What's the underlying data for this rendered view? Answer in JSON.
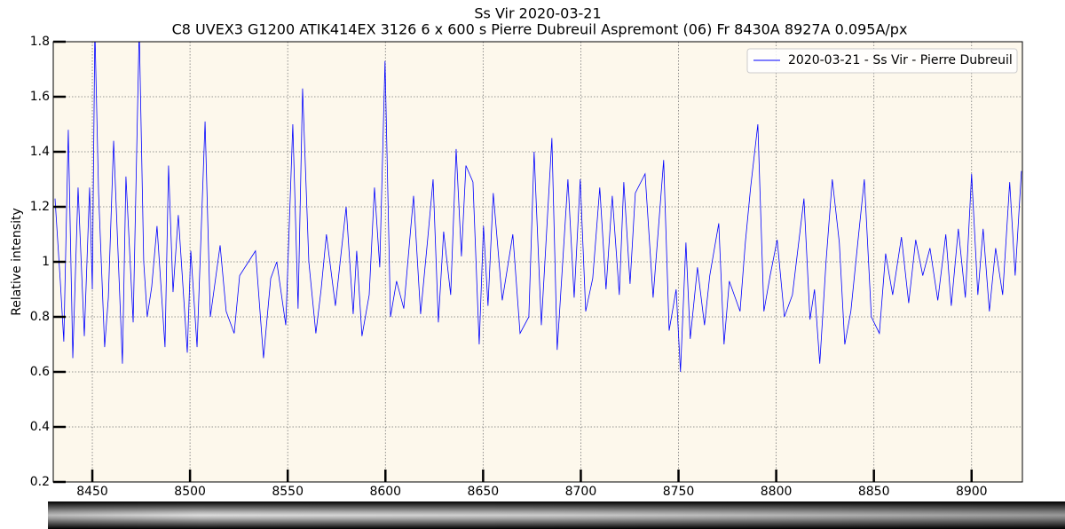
{
  "chart_data": {
    "type": "line",
    "title": "Ss Vir 2020-03-21",
    "subtitle": "C8 UVEX3 G1200 ATIK414EX 3126 6 x 600 s Pierre Dubreuil Aspremont (06) Fr 8430A 8927A 0.095A/px",
    "y_label": "Relative intensity",
    "xlim": [
      8430,
      8926
    ],
    "ylim": [
      0.2,
      1.8
    ],
    "xticks": [
      8450,
      8500,
      8550,
      8600,
      8650,
      8700,
      8750,
      8800,
      8850,
      8900
    ],
    "yticks": [
      0.2,
      0.4,
      0.6,
      0.8,
      1.0,
      1.2,
      1.4,
      1.6,
      1.8
    ],
    "grid": true,
    "legend": "upper right",
    "x": [
      8430.9,
      8433.6,
      8435.4,
      8437.7,
      8440.0,
      8442.7,
      8445.9,
      8448.6,
      8450.0,
      8451.3,
      8453.2,
      8456.3,
      8458.2,
      8460.9,
      8465.4,
      8467.2,
      8470.9,
      8474.0,
      8476.3,
      8478.1,
      8480.4,
      8483.1,
      8487.2,
      8489.0,
      8491.3,
      8494.0,
      8498.6,
      8500.4,
      8503.6,
      8507.7,
      8510.4,
      8515.4,
      8518.5,
      8522.6,
      8525.4,
      8529.9,
      8533.5,
      8537.6,
      8541.3,
      8544.4,
      8549.0,
      8552.6,
      8555.3,
      8557.6,
      8560.8,
      8564.4,
      8567.1,
      8569.8,
      8574.4,
      8579.9,
      8583.5,
      8585.3,
      8588.0,
      8591.7,
      8594.4,
      8597.1,
      8599.8,
      8602.6,
      8605.7,
      8609.4,
      8614.4,
      8618.0,
      8621.6,
      8624.4,
      8627.1,
      8629.8,
      8633.4,
      8636.2,
      8638.9,
      8641.2,
      8644.8,
      8648.0,
      8650.2,
      8652.5,
      8655.2,
      8659.8,
      8665.2,
      8668.9,
      8673.4,
      8676.1,
      8679.8,
      8685.2,
      8687.9,
      8693.4,
      8696.6,
      8699.7,
      8702.5,
      8706.1,
      8709.7,
      8712.9,
      8716.1,
      8719.7,
      8722.0,
      8725.2,
      8727.9,
      8732.9,
      8737.0,
      8742.4,
      8745.2,
      8748.8,
      8751.0,
      8753.8,
      8756.0,
      8759.7,
      8763.3,
      8766.0,
      8770.6,
      8773.3,
      8776.0,
      8781.5,
      8784.2,
      8786.9,
      8790.6,
      8793.7,
      8796.9,
      8800.5,
      8804.2,
      8808.3,
      8814.2,
      8817.3,
      8819.6,
      8822.3,
      8825.5,
      8828.7,
      8832.3,
      8835.1,
      8838.2,
      8841.9,
      8845.1,
      8848.7,
      8852.8,
      8856.0,
      8859.6,
      8864.1,
      8867.8,
      8871.4,
      8875.0,
      8878.7,
      8882.7,
      8886.8,
      8889.6,
      8893.2,
      8896.8,
      8900.0,
      8903.2,
      8905.9,
      8909.1,
      8912.3,
      8915.9,
      8919.5,
      8922.3,
      8925.5
    ],
    "series": [
      {
        "name": "2020-03-21 - Ss Vir - Pierre Dubreuil",
        "color": "#0000ff",
        "values": [
          1.23,
          0.93,
          0.71,
          1.48,
          0.65,
          1.27,
          0.73,
          1.27,
          0.9,
          1.85,
          1.25,
          0.69,
          0.87,
          1.44,
          0.63,
          1.31,
          0.78,
          1.85,
          1.0,
          0.8,
          0.91,
          1.13,
          0.69,
          1.35,
          0.89,
          1.17,
          0.67,
          1.04,
          0.69,
          1.51,
          0.8,
          1.06,
          0.82,
          0.74,
          0.95,
          1.0,
          1.04,
          0.65,
          0.94,
          1.0,
          0.77,
          1.5,
          0.83,
          1.63,
          1.0,
          0.74,
          0.9,
          1.1,
          0.84,
          1.2,
          0.81,
          1.04,
          0.73,
          0.88,
          1.27,
          0.98,
          1.73,
          0.8,
          0.93,
          0.83,
          1.24,
          0.81,
          1.08,
          1.3,
          0.78,
          1.11,
          0.88,
          1.41,
          1.02,
          1.35,
          1.29,
          0.7,
          1.13,
          0.84,
          1.25,
          0.86,
          1.1,
          0.74,
          0.8,
          1.4,
          0.77,
          1.45,
          0.68,
          1.3,
          0.87,
          1.3,
          0.82,
          0.94,
          1.27,
          0.9,
          1.24,
          0.88,
          1.29,
          0.92,
          1.25,
          1.32,
          0.87,
          1.37,
          0.75,
          0.9,
          0.6,
          1.07,
          0.72,
          0.98,
          0.77,
          0.95,
          1.14,
          0.7,
          0.93,
          0.82,
          1.07,
          1.27,
          1.5,
          0.82,
          0.95,
          1.08,
          0.8,
          0.88,
          1.23,
          0.79,
          0.9,
          0.63,
          1.0,
          1.3,
          1.07,
          0.7,
          0.82,
          1.08,
          1.3,
          0.8,
          0.74,
          1.03,
          0.88,
          1.09,
          0.85,
          1.08,
          0.95,
          1.05,
          0.86,
          1.1,
          0.84,
          1.12,
          0.87,
          1.32,
          0.88,
          1.12,
          0.82,
          1.05,
          0.88,
          1.29,
          0.95,
          1.33
        ]
      }
    ]
  }
}
